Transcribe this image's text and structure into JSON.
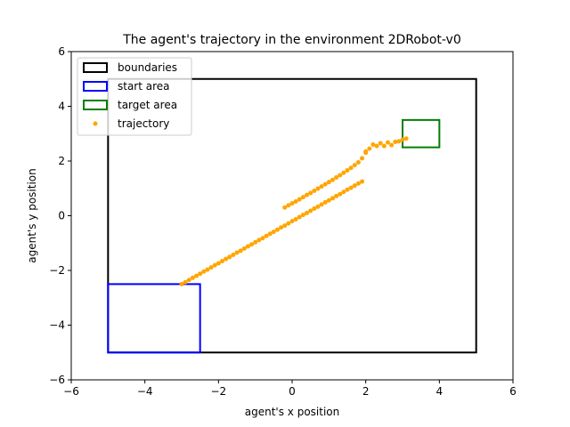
{
  "chart_data": {
    "type": "scatter",
    "title": "The agent's trajectory in the environment 2DRobot-v0",
    "xlabel": "agent's x position",
    "ylabel": "agent's y position",
    "xlim": [
      -6,
      6
    ],
    "ylim": [
      -6,
      6
    ],
    "xticks": [
      -6,
      -4,
      -2,
      0,
      2,
      4,
      6
    ],
    "yticks": [
      -6,
      -4,
      -2,
      0,
      2,
      4,
      6
    ],
    "grid": false,
    "legend_position": "top-left",
    "rectangles": [
      {
        "name": "boundaries",
        "x": [
          -5,
          5
        ],
        "y": [
          -5,
          5
        ],
        "color": "#000000"
      },
      {
        "name": "start area",
        "x": [
          -5,
          -2.5
        ],
        "y": [
          -5,
          -2.5
        ],
        "color": "#0000ff"
      },
      {
        "name": "target area",
        "x": [
          3,
          4
        ],
        "y": [
          2.5,
          3.5
        ],
        "color": "#008000"
      }
    ],
    "series": [
      {
        "name": "trajectory",
        "color": "#ffa500",
        "points": [
          [
            -3.0,
            -2.5
          ],
          [
            -2.9,
            -2.43
          ],
          [
            -2.8,
            -2.35
          ],
          [
            -2.7,
            -2.27
          ],
          [
            -2.6,
            -2.2
          ],
          [
            -2.5,
            -2.12
          ],
          [
            -2.4,
            -2.04
          ],
          [
            -2.3,
            -1.97
          ],
          [
            -2.2,
            -1.89
          ],
          [
            -2.1,
            -1.81
          ],
          [
            -2.0,
            -1.74
          ],
          [
            -1.9,
            -1.66
          ],
          [
            -1.8,
            -1.58
          ],
          [
            -1.7,
            -1.51
          ],
          [
            -1.6,
            -1.43
          ],
          [
            -1.5,
            -1.35
          ],
          [
            -1.4,
            -1.28
          ],
          [
            -1.3,
            -1.2
          ],
          [
            -1.2,
            -1.12
          ],
          [
            -1.1,
            -1.05
          ],
          [
            -1.0,
            -0.97
          ],
          [
            -0.9,
            -0.89
          ],
          [
            -0.8,
            -0.82
          ],
          [
            -0.7,
            -0.74
          ],
          [
            -0.6,
            -0.66
          ],
          [
            -0.5,
            -0.59
          ],
          [
            -0.4,
            -0.51
          ],
          [
            -0.3,
            -0.43
          ],
          [
            -0.2,
            -0.36
          ],
          [
            -0.1,
            -0.28
          ],
          [
            0.0,
            -0.2
          ],
          [
            0.1,
            -0.13
          ],
          [
            0.2,
            -0.05
          ],
          [
            0.3,
            0.03
          ],
          [
            0.4,
            0.1
          ],
          [
            0.5,
            0.18
          ],
          [
            0.6,
            0.26
          ],
          [
            0.7,
            0.33
          ],
          [
            0.8,
            0.41
          ],
          [
            0.9,
            0.49
          ],
          [
            1.0,
            0.56
          ],
          [
            1.1,
            0.64
          ],
          [
            1.2,
            0.72
          ],
          [
            1.3,
            0.79
          ],
          [
            1.4,
            0.87
          ],
          [
            1.5,
            0.95
          ],
          [
            1.6,
            1.02
          ],
          [
            1.7,
            1.1
          ],
          [
            1.8,
            1.18
          ],
          [
            1.9,
            1.25
          ],
          [
            2.0,
            2.35
          ],
          [
            -0.2,
            0.3
          ],
          [
            -0.1,
            0.38
          ],
          [
            0.0,
            0.45
          ],
          [
            0.1,
            0.52
          ],
          [
            0.2,
            0.6
          ],
          [
            0.3,
            0.68
          ],
          [
            0.4,
            0.76
          ],
          [
            0.5,
            0.83
          ],
          [
            0.6,
            0.91
          ],
          [
            0.7,
            0.99
          ],
          [
            0.8,
            1.07
          ],
          [
            0.9,
            1.15
          ],
          [
            1.0,
            1.23
          ],
          [
            1.1,
            1.31
          ],
          [
            1.2,
            1.4
          ],
          [
            1.3,
            1.48
          ],
          [
            1.4,
            1.57
          ],
          [
            1.5,
            1.66
          ],
          [
            1.6,
            1.75
          ],
          [
            1.7,
            1.85
          ],
          [
            1.8,
            1.95
          ],
          [
            1.9,
            2.1
          ],
          [
            2.0,
            2.3
          ],
          [
            2.1,
            2.45
          ],
          [
            2.2,
            2.6
          ],
          [
            2.3,
            2.55
          ],
          [
            2.4,
            2.65
          ],
          [
            2.5,
            2.55
          ],
          [
            2.6,
            2.68
          ],
          [
            2.7,
            2.58
          ],
          [
            2.8,
            2.7
          ],
          [
            2.9,
            2.72
          ],
          [
            3.0,
            2.78
          ],
          [
            3.1,
            2.82
          ]
        ]
      }
    ]
  }
}
